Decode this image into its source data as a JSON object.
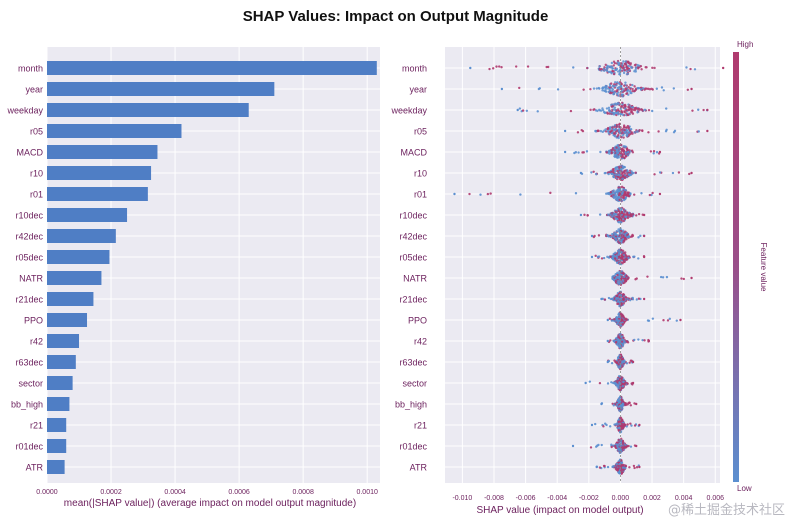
{
  "title": "SHAP Values: Impact on Output Magnitude",
  "watermark": "@稀土掘金技术社区",
  "colors": {
    "bar": "#4f7ec5",
    "low": "#5b8fd0",
    "high": "#b03a6e",
    "panel": "#ebeaf2",
    "grid": "#ffffff",
    "text": "#6b1f5c"
  },
  "chart_data": [
    {
      "type": "bar",
      "orientation": "horizontal",
      "categories": [
        "month",
        "year",
        "weekday",
        "r05",
        "MACD",
        "r10",
        "r01",
        "r10dec",
        "r42dec",
        "r05dec",
        "NATR",
        "r21dec",
        "PPO",
        "r42",
        "r63dec",
        "sector",
        "bb_high",
        "r21",
        "r01dec",
        "ATR"
      ],
      "values": [
        0.00103,
        0.00071,
        0.00063,
        0.00042,
        0.000345,
        0.000325,
        0.000315,
        0.00025,
        0.000215,
        0.000195,
        0.00017,
        0.000145,
        0.000125,
        0.0001,
        9e-05,
        8e-05,
        7e-05,
        6e-05,
        6e-05,
        5.5e-05
      ],
      "xlim": [
        0,
        0.00104
      ],
      "xticks": [
        "0.0000",
        "0.0002",
        "0.0004",
        "0.0006",
        "0.0008",
        "0.0010"
      ],
      "xtick_values": [
        0,
        0.0002,
        0.0004,
        0.0006,
        0.0008,
        0.001
      ],
      "xlabel": "mean(|SHAP value|) (average impact on model output magnitude)"
    },
    {
      "type": "scatter",
      "subtype": "beeswarm",
      "features": [
        {
          "name": "month",
          "range": [
            -0.0095,
            0.0065
          ],
          "spread": 0.0018
        },
        {
          "name": "year",
          "range": [
            -0.0075,
            0.0045
          ],
          "spread": 0.0016
        },
        {
          "name": "weekday",
          "range": [
            -0.0065,
            0.0055
          ],
          "spread": 0.0016
        },
        {
          "name": "r05",
          "range": [
            -0.0035,
            0.0055
          ],
          "spread": 0.0013
        },
        {
          "name": "MACD",
          "range": [
            -0.0035,
            0.0025
          ],
          "spread": 0.0009
        },
        {
          "name": "r10",
          "range": [
            -0.0025,
            0.0045
          ],
          "spread": 0.0009
        },
        {
          "name": "r01",
          "range": [
            -0.0105,
            0.0025
          ],
          "spread": 0.0008
        },
        {
          "name": "r10dec",
          "range": [
            -0.0025,
            0.0015
          ],
          "spread": 0.0008
        },
        {
          "name": "r42dec",
          "range": [
            -0.0018,
            0.0015
          ],
          "spread": 0.0007
        },
        {
          "name": "r05dec",
          "range": [
            -0.0018,
            0.0015
          ],
          "spread": 0.0007
        },
        {
          "name": "NATR",
          "range": [
            -0.0005,
            0.0045
          ],
          "spread": 0.0006
        },
        {
          "name": "r21dec",
          "range": [
            -0.0012,
            0.0015
          ],
          "spread": 0.0005
        },
        {
          "name": "PPO",
          "range": [
            -0.0008,
            0.0038
          ],
          "spread": 0.0004
        },
        {
          "name": "r42",
          "range": [
            -0.0008,
            0.0018
          ],
          "spread": 0.0004
        },
        {
          "name": "r63dec",
          "range": [
            -0.0008,
            0.0008
          ],
          "spread": 0.0003
        },
        {
          "name": "sector",
          "range": [
            -0.0022,
            0.0008
          ],
          "spread": 0.0004
        },
        {
          "name": "bb_high",
          "range": [
            -0.0012,
            0.001
          ],
          "spread": 0.0003
        },
        {
          "name": "r21",
          "range": [
            -0.0018,
            0.0012
          ],
          "spread": 0.0003
        },
        {
          "name": "r01dec",
          "range": [
            -0.003,
            0.001
          ],
          "spread": 0.0004
        },
        {
          "name": "ATR",
          "range": [
            -0.0015,
            0.0012
          ],
          "spread": 0.0004
        }
      ],
      "xlim": [
        -0.0111,
        0.0063
      ],
      "xticks": [
        "-0.010",
        "-0.008",
        "-0.006",
        "-0.004",
        "-0.002",
        "0.000",
        "0.002",
        "0.004",
        "0.006"
      ],
      "xtick_values": [
        -0.01,
        -0.008,
        -0.006,
        -0.004,
        -0.002,
        0.0,
        0.002,
        0.004,
        0.006
      ],
      "xlabel": "SHAP value (impact on model output)",
      "colorbar": {
        "label": "Feature value",
        "high": "High",
        "low": "Low"
      }
    }
  ]
}
